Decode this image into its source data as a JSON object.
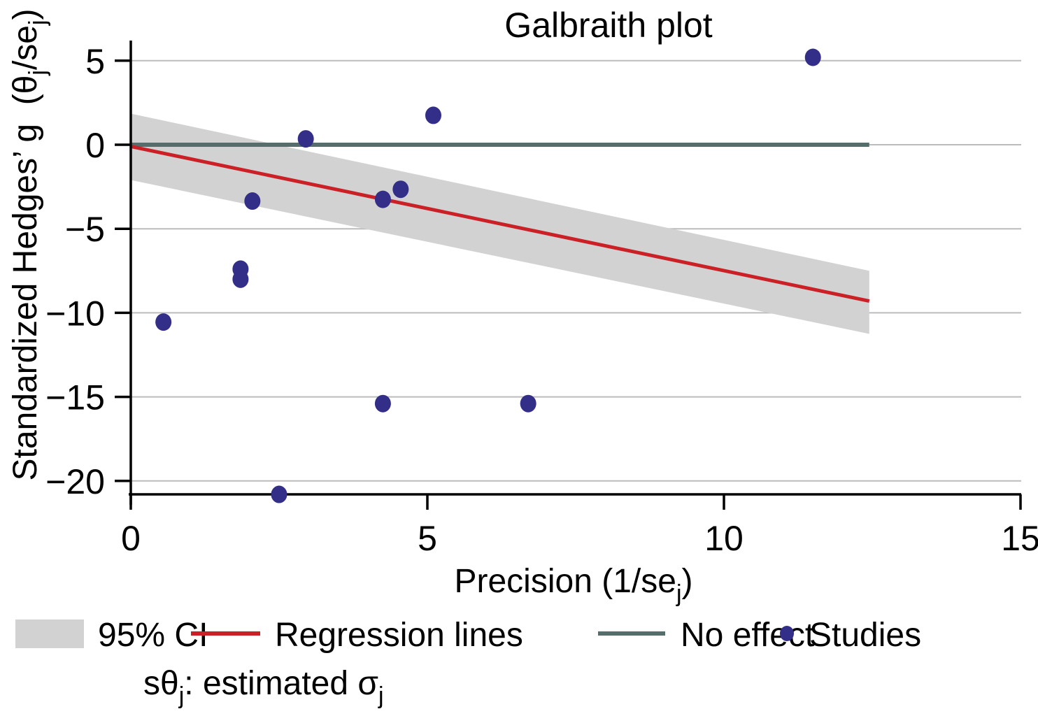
{
  "title": "Galbraith plot",
  "colors": {
    "studies": "#332e87",
    "regression": "#cb2026",
    "no_effect": "#566e6b",
    "ci_band": "#d2d2d2",
    "gridline": "#bcbcbc",
    "axis": "#000000"
  },
  "chart_data": {
    "type": "scatter",
    "title": "Galbraith plot",
    "xlabel": "Precision (1/se_j)",
    "ylabel": "Standardized Hedges' g (theta_j/se_j)",
    "xlim": [
      0,
      15
    ],
    "ylim": [
      -20.8,
      6.1
    ],
    "x_ticks": [
      0,
      5,
      10,
      15
    ],
    "y_ticks": [
      5,
      0,
      -5,
      -10,
      -15,
      -20
    ],
    "grid": "horizontal",
    "legend_position": "bottom",
    "points": [
      {
        "x": 11.5,
        "y": 5.2
      },
      {
        "x": 5.1,
        "y": 1.75
      },
      {
        "x": 2.95,
        "y": 0.35
      },
      {
        "x": 2.05,
        "y": -3.35
      },
      {
        "x": 4.25,
        "y": -3.25
      },
      {
        "x": 4.55,
        "y": -2.65
      },
      {
        "x": 1.85,
        "y": -7.4
      },
      {
        "x": 1.85,
        "y": -8.0
      },
      {
        "x": 0.55,
        "y": -10.55
      },
      {
        "x": 4.25,
        "y": -15.4
      },
      {
        "x": 6.7,
        "y": -15.4
      },
      {
        "x": 2.5,
        "y": -20.8
      }
    ],
    "regression_line": {
      "x0": 0,
      "y0": -0.1,
      "x1": 12.45,
      "y1": -9.3
    },
    "no_effect_line": {
      "y": 0,
      "x0": 0,
      "x1": 12.45
    },
    "ci_band": {
      "x0": 0,
      "x1": 12.45,
      "top_start": 1.85,
      "top_end": -7.5,
      "bottom_start": -2.1,
      "bottom_end": -11.25
    }
  },
  "labels": {
    "y_axis": {
      "main": "Standardized Hedges’ g  (θ",
      "sub1": "j",
      "mid": "/se",
      "sub2": "j",
      "end": ")"
    },
    "x_axis": {
      "main": "Precision (1/se",
      "sub": "j",
      "end": ")"
    }
  },
  "legend": {
    "items": [
      {
        "swatch": "ci-band",
        "label": "95% CI"
      },
      {
        "swatch": "regression-line",
        "label": "Regression lines"
      },
      {
        "swatch": "no-effect-line",
        "label": "No effect"
      },
      {
        "swatch": "study-dot",
        "label": "Studies"
      }
    ]
  },
  "note": {
    "p1": "sθ",
    "sub1": "j",
    "p2": ": estimated σ",
    "sub2": "j"
  }
}
